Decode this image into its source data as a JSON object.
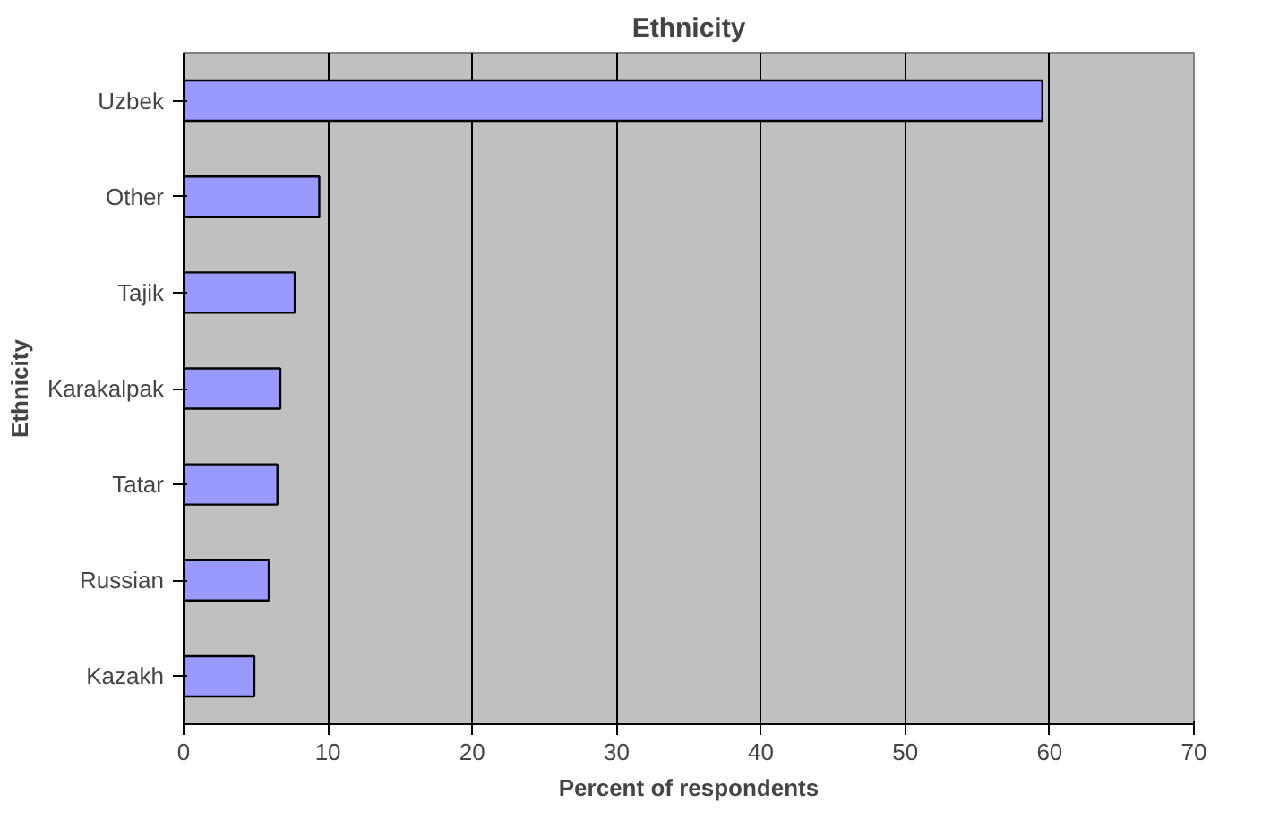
{
  "chart_data": {
    "type": "bar",
    "orientation": "horizontal",
    "title": "Ethnicity",
    "xlabel": "Percent of respondents",
    "ylabel": "Ethnicity",
    "categories": [
      "Uzbek",
      "Other",
      "Tajik",
      "Karakalpak",
      "Tatar",
      "Russian",
      "Kazakh"
    ],
    "values": [
      59.5,
      9.4,
      7.7,
      6.7,
      6.5,
      5.9,
      4.9
    ],
    "color": "#9999ff",
    "xlim": [
      0,
      70
    ],
    "xticks": [
      0,
      10,
      20,
      30,
      40,
      50,
      60,
      70
    ],
    "grid": "x"
  }
}
